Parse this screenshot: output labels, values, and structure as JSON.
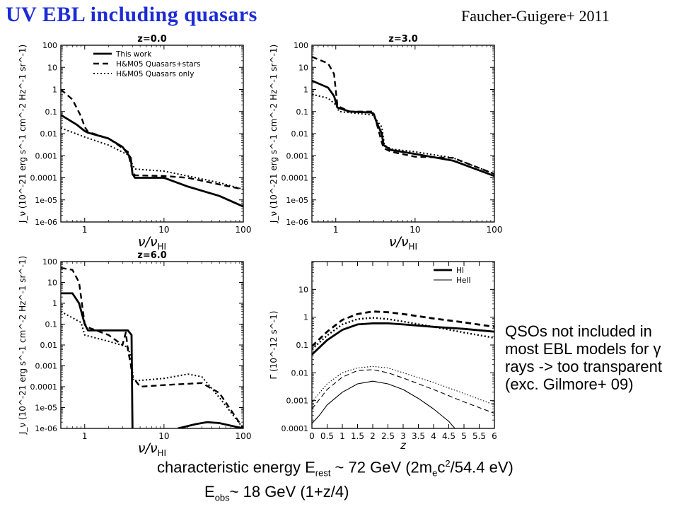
{
  "slide": {
    "title": "UV EBL including quasars",
    "citation": "Faucher-Guigere+ 2011",
    "note": "QSOs not included in most EBL models for γ rays -> too transparent (exc. Gilmore+ 09)",
    "formula_line1": {
      "prefix": "characteristic energy E",
      "sub1": "rest",
      "mid1": " ~ 72 GeV (2m",
      "sub2": "e",
      "mid2": "c",
      "sup": "2",
      "suffix": "/54.4 eV)"
    },
    "formula_line2": {
      "prefix": "E",
      "sub": "obs",
      "suffix": "~ 18 GeV (1+z/4)"
    }
  },
  "chart_data": [
    {
      "type": "line",
      "title": "z=0.0",
      "xlabel": "ν/ν_HI",
      "ylabel": "J_ν (10^-21 erg s^-1 cm^-2 Hz^-1 sr^-1)",
      "xscale": "log",
      "yscale": "log",
      "xlim": [
        0.5,
        100
      ],
      "ylim": [
        1e-06,
        100
      ],
      "xticks": [
        "1",
        "10",
        "100"
      ],
      "yticks": [
        "1e-06",
        "1e-05",
        "0.0001",
        "0.001",
        "0.01",
        "0.1",
        "1",
        "10",
        "100"
      ],
      "legend": {
        "position": "top-right",
        "entries": [
          "This work",
          "H&M05 Quasars+stars",
          "H&M05 Quasars only"
        ]
      },
      "series": [
        {
          "name": "This work",
          "style": "solid-thick",
          "x": [
            0.5,
            0.8,
            1.0,
            1.1,
            2.0,
            3.0,
            3.8,
            4.0,
            4.3,
            10,
            20,
            50,
            100
          ],
          "y": [
            0.07,
            0.025,
            0.013,
            0.011,
            0.006,
            0.0025,
            0.0008,
            0.00015,
            0.0001,
            0.0001,
            4e-05,
            1.5e-05,
            5e-06
          ]
        },
        {
          "name": "H&M05 Quasars+stars",
          "style": "dashed",
          "x": [
            0.5,
            0.7,
            0.9,
            1.0,
            1.1,
            2.0,
            3.5,
            4.0,
            4.3,
            10,
            20,
            50,
            100
          ],
          "y": [
            1.0,
            0.35,
            0.06,
            0.02,
            0.012,
            0.006,
            0.0015,
            0.0002,
            0.00013,
            0.00012,
            0.0001,
            5e-05,
            3e-05
          ]
        },
        {
          "name": "H&M05 Quasars only",
          "style": "dotted",
          "x": [
            0.5,
            1.0,
            2.0,
            3.5,
            4.0,
            4.3,
            10,
            20,
            50,
            100
          ],
          "y": [
            0.018,
            0.007,
            0.003,
            0.0011,
            0.0004,
            0.00025,
            0.0002,
            0.00012,
            6e-05,
            3e-05
          ]
        }
      ]
    },
    {
      "type": "line",
      "title": "z=3.0",
      "xlabel": "ν/ν_HI",
      "ylabel": "J_ν (10^-21 erg s^-1 cm^-2 Hz^-1 sr^-1)",
      "xscale": "log",
      "yscale": "log",
      "xlim": [
        0.5,
        100
      ],
      "ylim": [
        1e-06,
        100
      ],
      "xticks": [
        "1",
        "10",
        "100"
      ],
      "yticks": [
        "1e-06",
        "1e-05",
        "0.0001",
        "0.001",
        "0.01",
        "0.1",
        "1",
        "10",
        "100"
      ],
      "series": [
        {
          "name": "This work",
          "style": "solid-thick",
          "x": [
            0.5,
            0.8,
            0.95,
            1.05,
            1.5,
            2.8,
            3.0,
            3.3,
            3.8,
            4.0,
            5,
            10,
            30,
            100
          ],
          "y": [
            2.5,
            1.2,
            0.5,
            0.15,
            0.1,
            0.09,
            0.08,
            0.03,
            0.01,
            0.003,
            0.0018,
            0.0012,
            0.0006,
            0.00012
          ]
        },
        {
          "name": "H&M05 Quasars+stars",
          "style": "dashed",
          "x": [
            0.5,
            0.8,
            0.95,
            1.05,
            1.5,
            2.9,
            3.0,
            3.5,
            3.8,
            4.0,
            5,
            10,
            30,
            100
          ],
          "y": [
            30,
            15,
            5,
            0.18,
            0.1,
            0.1,
            0.09,
            0.012,
            0.004,
            0.0022,
            0.0015,
            0.0009,
            0.0008,
            0.00015
          ]
        },
        {
          "name": "H&M05 Quasars only",
          "style": "dotted",
          "x": [
            0.5,
            0.8,
            1.0,
            1.1,
            2.9,
            3.0,
            3.8,
            4.1,
            5,
            10,
            30,
            100
          ],
          "y": [
            0.6,
            0.4,
            0.2,
            0.1,
            0.07,
            0.06,
            0.02,
            0.003,
            0.002,
            0.0015,
            0.0008,
            0.00015
          ]
        }
      ]
    },
    {
      "type": "line",
      "title": "z=6.0",
      "xlabel": "ν/ν_HI",
      "ylabel": "J_ν (10^-21 erg s^-1 cm^-2 Hz^-1 sr^-1)",
      "xscale": "log",
      "yscale": "log",
      "xlim": [
        0.5,
        100
      ],
      "ylim": [
        1e-06,
        100
      ],
      "xticks": [
        "1",
        "10",
        "100"
      ],
      "yticks": [
        "1e-06",
        "1e-05",
        "0.0001",
        "0.001",
        "0.01",
        "0.1",
        "1",
        "10",
        "100"
      ],
      "series": [
        {
          "name": "This work",
          "style": "solid-thick",
          "x": [
            0.5,
            0.7,
            0.85,
            1.0,
            1.1,
            2.0,
            3.5,
            3.9,
            4.0,
            4.0
          ],
          "y": [
            3,
            3,
            1,
            0.1,
            0.05,
            0.05,
            0.05,
            0.03,
            1e-06,
            1e-06
          ],
          "extra_x": [
            15,
            25,
            35,
            50,
            100
          ],
          "extra_y": [
            1e-06,
            1.6e-06,
            2e-06,
            1.8e-06,
            1e-06
          ]
        },
        {
          "name": "H&M05 Quasars+stars",
          "style": "dashed",
          "x": [
            0.5,
            0.7,
            0.85,
            1.0,
            1.1,
            2.0,
            3.0,
            3.3,
            3.5,
            3.8,
            4.0,
            5,
            10,
            30,
            50,
            100
          ],
          "y": [
            50,
            40,
            10,
            0.1,
            0.07,
            0.03,
            0.01,
            0.04,
            0.006,
            0.0012,
            0.0003,
            0.0001,
            0.00012,
            0.00015,
            5e-05,
            1e-06
          ]
        },
        {
          "name": "H&M05 Quasars only",
          "style": "dotted",
          "x": [
            0.5,
            0.9,
            1.0,
            2.0,
            3.5,
            3.9,
            4.1,
            5,
            10,
            20,
            30,
            50,
            100
          ],
          "y": [
            0.4,
            0.12,
            0.03,
            0.015,
            0.008,
            0.002,
            0.0002,
            0.0002,
            0.00025,
            0.0004,
            0.0003,
            3e-05,
            1e-06
          ]
        }
      ]
    },
    {
      "type": "line",
      "title": "",
      "xlabel": "z",
      "ylabel": "Γ (10^-12 s^-1)",
      "xscale": "linear",
      "yscale": "log",
      "xlim": [
        0,
        6
      ],
      "ylim": [
        0.0001,
        100
      ],
      "xticks": [
        "0",
        "0.5",
        "1",
        "1.5",
        "2",
        "2.5",
        "3",
        "3.5",
        "4",
        "4.5",
        "5",
        "5.5",
        "6"
      ],
      "yticks": [
        "0.0001",
        "0.001",
        "0.01",
        "0.1",
        "1",
        "10"
      ],
      "legend": {
        "position": "top-right",
        "entries": [
          "HI",
          "HeII"
        ]
      },
      "series": [
        {
          "name": "HI",
          "style": "solid-thick",
          "x": [
            0,
            0.5,
            1,
            1.5,
            2,
            2.5,
            3,
            4,
            5,
            6
          ],
          "y": [
            0.045,
            0.15,
            0.35,
            0.55,
            0.6,
            0.6,
            0.55,
            0.45,
            0.38,
            0.3
          ]
        },
        {
          "name": "",
          "style": "dashed-thick",
          "x": [
            0,
            0.5,
            1,
            1.5,
            2,
            2.5,
            3,
            4,
            5,
            6
          ],
          "y": [
            0.09,
            0.3,
            0.8,
            1.3,
            1.6,
            1.5,
            1.3,
            0.9,
            0.65,
            0.45
          ]
        },
        {
          "name": "",
          "style": "dotted-thick",
          "x": [
            0,
            0.5,
            1,
            1.5,
            2,
            2.5,
            3,
            4,
            5,
            6
          ],
          "y": [
            0.07,
            0.22,
            0.55,
            0.85,
            0.95,
            0.85,
            0.7,
            0.45,
            0.28,
            0.18
          ]
        },
        {
          "name": "HeII",
          "style": "solid-thin",
          "x": [
            0,
            0.25,
            0.5,
            1,
            1.5,
            2,
            2.5,
            3,
            3.5,
            4,
            4.5,
            4.7
          ],
          "y": [
            0.00015,
            0.0003,
            0.0007,
            0.002,
            0.004,
            0.005,
            0.004,
            0.0025,
            0.0012,
            0.0005,
            0.00018,
            0.0001
          ]
        },
        {
          "name": "",
          "style": "dashed-thin",
          "x": [
            0,
            0.5,
            1,
            1.5,
            2,
            2.5,
            3,
            4,
            5,
            6
          ],
          "y": [
            0.0005,
            0.0025,
            0.007,
            0.012,
            0.013,
            0.01,
            0.0065,
            0.0025,
            0.0009,
            0.00035
          ]
        },
        {
          "name": "",
          "style": "dotted-thin",
          "x": [
            0,
            0.5,
            1,
            1.5,
            2,
            2.5,
            3,
            4,
            5,
            6
          ],
          "y": [
            0.0009,
            0.004,
            0.01,
            0.015,
            0.017,
            0.015,
            0.01,
            0.0045,
            0.0018,
            0.0007
          ]
        }
      ]
    }
  ]
}
